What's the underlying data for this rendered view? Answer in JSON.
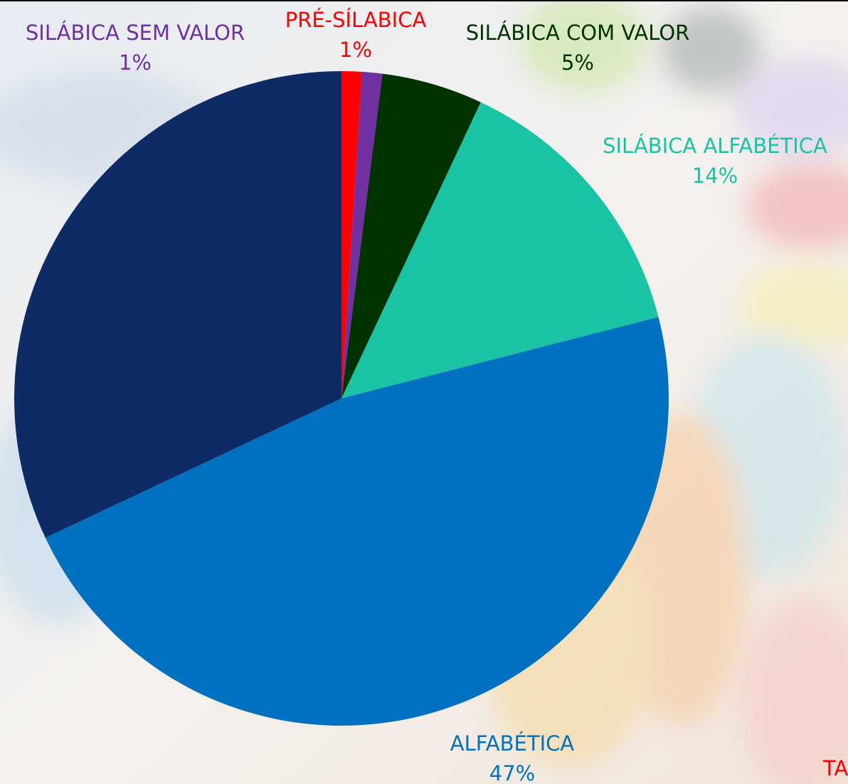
{
  "chart_data": {
    "type": "pie",
    "categories": [
      "PRÉ-SÍLABICA",
      "SILÁBICA SEM VALOR",
      "SILÁBICA COM VALOR",
      "SILÁBICA ALFABÉTICA",
      "ALFABÉTICA",
      null
    ],
    "values": [
      1,
      1,
      5,
      14,
      47,
      32
    ],
    "value_labels": [
      "1%",
      "1%",
      "5%",
      "14%",
      "47%",
      null
    ],
    "colors": [
      "#ff0000",
      "#7030a0",
      "#003300",
      "#19c3a3",
      "#0070c0",
      "#0e2b66"
    ],
    "annotation": "TA"
  }
}
